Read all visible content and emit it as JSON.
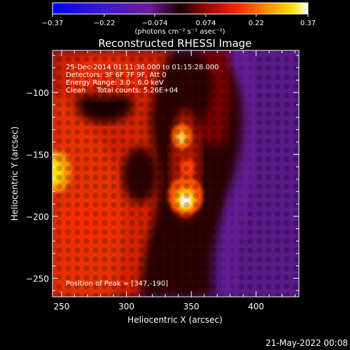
{
  "chart_data": {
    "type": "heatmap",
    "title": "Reconstructed RHESSI Image",
    "xlabel": "Heliocentric X (arcsec)",
    "ylabel": "Heliocentric Y (arcsec)",
    "xlim": [
      243,
      433
    ],
    "ylim": [
      -265,
      -66
    ],
    "x_ticks": [
      250,
      300,
      350,
      400
    ],
    "y_ticks": [
      -100,
      -150,
      -200,
      -250
    ],
    "colorbar": {
      "ticks": [
        -0.37,
        -0.22,
        -0.074,
        0.074,
        0.22,
        0.37
      ],
      "tick_labels": [
        "−0.37",
        "−0.22",
        "−0.074",
        "0.074",
        "0.22",
        "0.37"
      ],
      "units": "(photons cm⁻² s⁻¹ asec⁻²)",
      "range": [
        -0.37,
        0.37
      ]
    },
    "annotations": [
      "25-Dec-2014 01:11:36.000 to 01:15:28.000",
      "Detectors: 3F 6F 7F 9F, Att 0",
      "Energy Range: 3.0 - 6.0 keV",
      "Clean     Total counts: 5.26E+04"
    ],
    "peak_label": "Position of Peak = [347,-190]",
    "peak": [
      347,
      -190
    ],
    "sources": [
      {
        "x": 347,
        "y": -190,
        "value": 0.37
      },
      {
        "x": 344,
        "y": -142,
        "value": 0.26
      },
      {
        "x": 243,
        "y": -167,
        "value": 0.3
      }
    ]
  },
  "footer": {
    "timestamp": "21-May-2022 00:08"
  },
  "colors": {
    "background": "#000000",
    "text": "#ffffff"
  }
}
